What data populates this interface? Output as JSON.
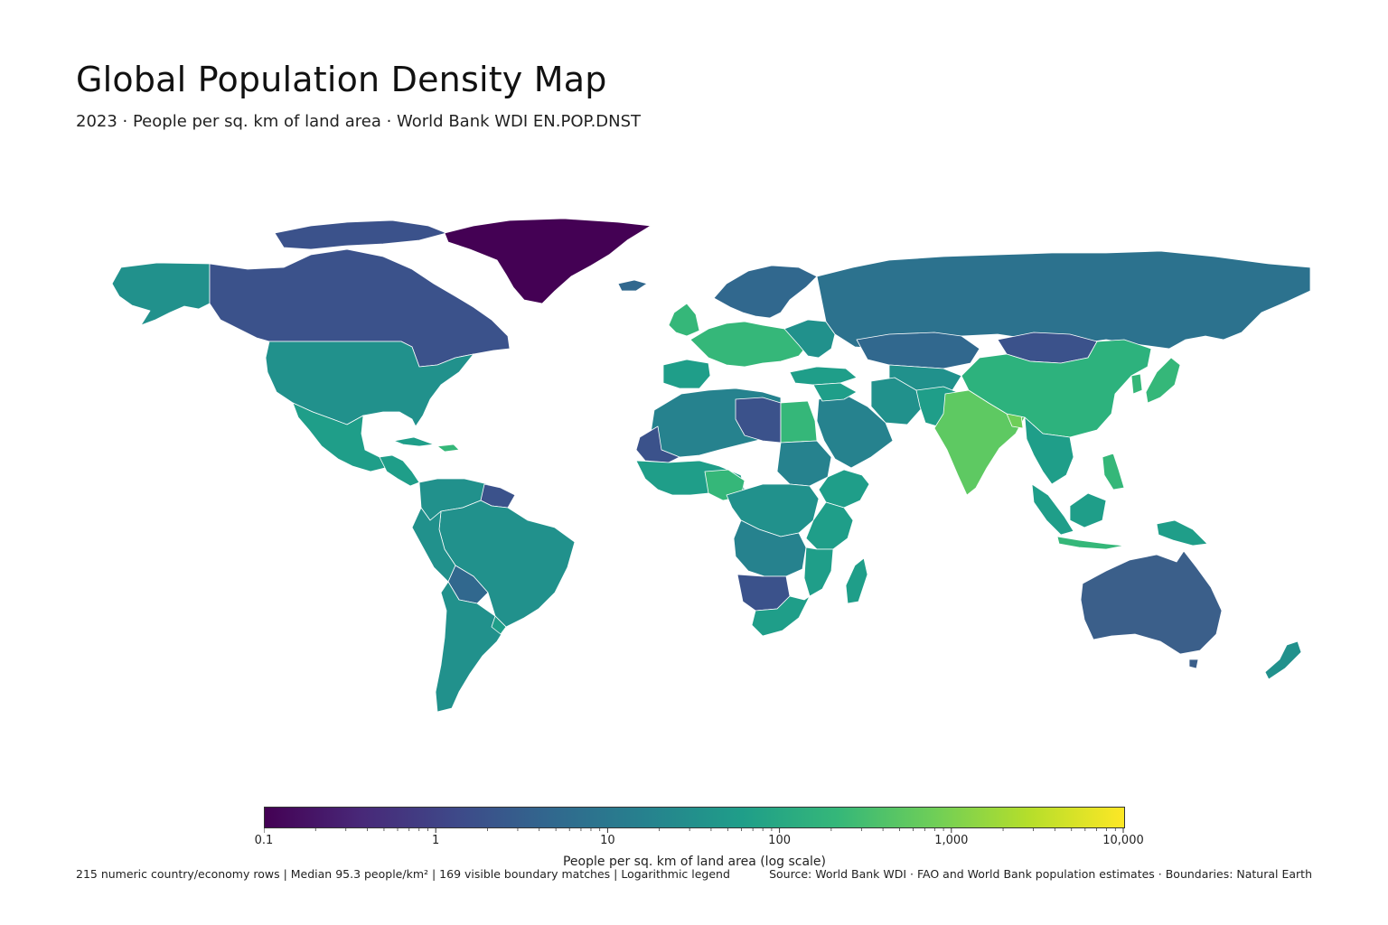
{
  "title": "Global Population Density Map",
  "subtitle": "2023 · People per sq. km of land area · World Bank WDI EN.POP.DNST",
  "legend": {
    "title": "People per sq. km of land area (log scale)",
    "scale": "log",
    "min": 0.1,
    "max": 10000,
    "ticks": [
      "0.1",
      "1",
      "10",
      "100",
      "1,000",
      "10,000"
    ],
    "colormap": "viridis",
    "stops": [
      "#440154",
      "#482878",
      "#3e4989",
      "#31688e",
      "#26828e",
      "#1f9e89",
      "#35b779",
      "#6ece58",
      "#b5de2b",
      "#fde725"
    ]
  },
  "footer": {
    "stats": "215 numeric country/economy rows  |  Median 95.3 people/km²  |  169 visible boundary matches  |  Logarithmic legend",
    "source": "Source: World Bank WDI · FAO and World Bank population estimates · Boundaries: Natural Earth"
  }
}
